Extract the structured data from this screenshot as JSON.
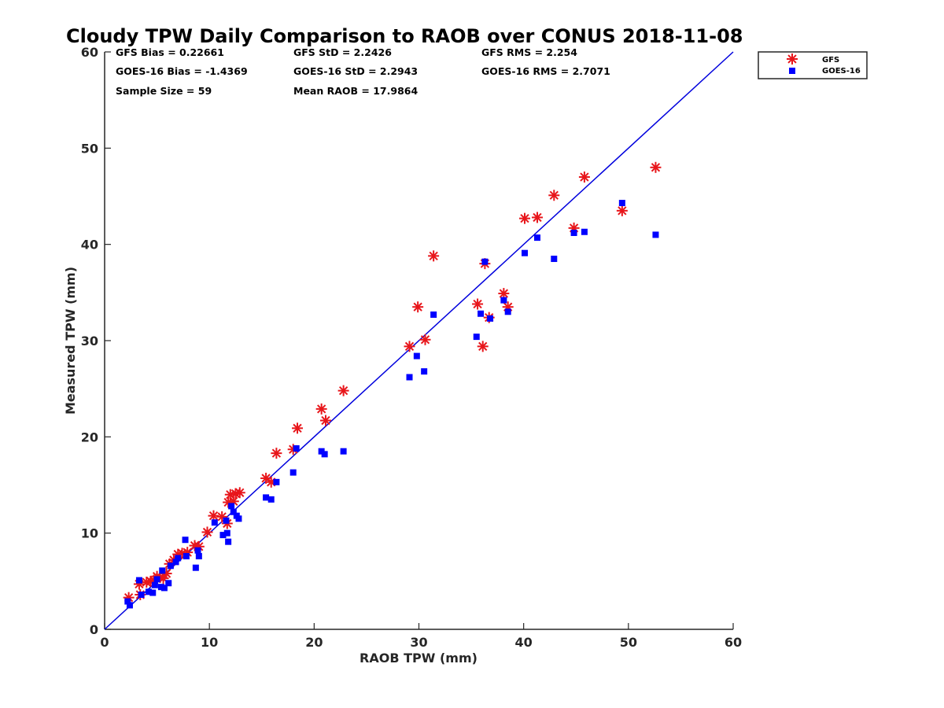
{
  "chart_data": {
    "type": "scatter",
    "title": "Cloudy TPW Daily Comparison to RAOB over CONUS 2018-11-08",
    "xlabel": "RAOB TPW (mm)",
    "ylabel": "Measured TPW (mm)",
    "xlim": [
      0,
      60
    ],
    "ylim": [
      0,
      60
    ],
    "xticks": [
      "0",
      "10",
      "20",
      "30",
      "40",
      "50",
      "60"
    ],
    "yticks": [
      "0",
      "10",
      "20",
      "30",
      "40",
      "50",
      "60"
    ],
    "grid": false,
    "legend_placement": "outside-top-right",
    "reference_line": "y = x",
    "stats": {
      "gfs_bias": "GFS Bias = 0.22661",
      "goes_bias": "GOES-16 Bias = -1.4369",
      "sample_size": "Sample Size = 59",
      "gfs_std": "GFS StD = 2.2426",
      "goes_std": "GOES-16 StD = 2.2943",
      "mean_raob": "Mean RAOB = 17.9864",
      "gfs_rms": "GFS RMS = 2.254",
      "goes_rms": "GOES-16 RMS = 2.7071"
    },
    "series": [
      {
        "name": "GFS",
        "marker": "asterisk",
        "color": "#e8161b",
        "points": [
          [
            2.3,
            3.3
          ],
          [
            3.3,
            4.7
          ],
          [
            3.4,
            3.6
          ],
          [
            4.0,
            4.9
          ],
          [
            4.4,
            5.0
          ],
          [
            4.7,
            5.1
          ],
          [
            5.0,
            5.5
          ],
          [
            5.3,
            5.4
          ],
          [
            5.6,
            5.3
          ],
          [
            5.9,
            5.8
          ],
          [
            6.2,
            6.8
          ],
          [
            6.6,
            7.2
          ],
          [
            7.0,
            7.8
          ],
          [
            7.4,
            7.9
          ],
          [
            7.9,
            8.0
          ],
          [
            8.6,
            8.7
          ],
          [
            9.0,
            8.6
          ],
          [
            9.8,
            10.1
          ],
          [
            10.4,
            11.8
          ],
          [
            11.2,
            11.7
          ],
          [
            11.7,
            11.0
          ],
          [
            11.8,
            13.2
          ],
          [
            12.0,
            14.0
          ],
          [
            12.3,
            13.3
          ],
          [
            12.5,
            14.1
          ],
          [
            12.9,
            14.2
          ],
          [
            15.4,
            15.7
          ],
          [
            15.9,
            15.3
          ],
          [
            16.4,
            18.3
          ],
          [
            18.0,
            18.7
          ],
          [
            18.4,
            20.9
          ],
          [
            20.7,
            22.9
          ],
          [
            21.1,
            21.7
          ],
          [
            22.8,
            24.8
          ],
          [
            29.1,
            29.4
          ],
          [
            29.9,
            33.5
          ],
          [
            30.6,
            30.1
          ],
          [
            31.4,
            38.8
          ],
          [
            35.6,
            33.8
          ],
          [
            36.1,
            29.4
          ],
          [
            36.3,
            38.0
          ],
          [
            36.7,
            32.4
          ],
          [
            38.1,
            34.9
          ],
          [
            38.5,
            33.5
          ],
          [
            40.1,
            42.7
          ],
          [
            41.3,
            42.8
          ],
          [
            42.9,
            45.1
          ],
          [
            44.8,
            41.7
          ],
          [
            45.8,
            47.0
          ],
          [
            49.4,
            43.5
          ],
          [
            52.6,
            48.0
          ]
        ]
      },
      {
        "name": "GOES-16",
        "marker": "square",
        "color": "#0000ff",
        "points": [
          [
            2.2,
            2.9
          ],
          [
            2.4,
            2.5
          ],
          [
            3.3,
            5.1
          ],
          [
            3.5,
            3.6
          ],
          [
            4.2,
            3.9
          ],
          [
            4.6,
            3.8
          ],
          [
            4.8,
            4.6
          ],
          [
            5.0,
            5.2
          ],
          [
            5.4,
            4.4
          ],
          [
            5.5,
            6.1
          ],
          [
            5.7,
            4.3
          ],
          [
            6.1,
            4.8
          ],
          [
            6.3,
            6.6
          ],
          [
            6.8,
            7.0
          ],
          [
            7.0,
            7.4
          ],
          [
            7.7,
            9.3
          ],
          [
            7.8,
            7.6
          ],
          [
            8.7,
            6.4
          ],
          [
            8.9,
            8.2
          ],
          [
            9.0,
            7.6
          ],
          [
            10.5,
            11.1
          ],
          [
            11.3,
            9.8
          ],
          [
            11.6,
            11.3
          ],
          [
            11.7,
            10.0
          ],
          [
            11.8,
            9.1
          ],
          [
            12.1,
            12.8
          ],
          [
            12.3,
            12.2
          ],
          [
            12.6,
            11.8
          ],
          [
            12.8,
            11.5
          ],
          [
            15.4,
            13.7
          ],
          [
            15.9,
            13.5
          ],
          [
            16.4,
            15.3
          ],
          [
            18.0,
            16.3
          ],
          [
            18.3,
            18.8
          ],
          [
            20.7,
            18.5
          ],
          [
            21.0,
            18.2
          ],
          [
            22.8,
            18.5
          ],
          [
            29.1,
            26.2
          ],
          [
            29.8,
            28.4
          ],
          [
            30.5,
            26.8
          ],
          [
            31.4,
            32.7
          ],
          [
            35.5,
            30.4
          ],
          [
            35.9,
            32.8
          ],
          [
            36.3,
            38.2
          ],
          [
            36.8,
            32.3
          ],
          [
            38.1,
            34.2
          ],
          [
            38.5,
            33.0
          ],
          [
            40.1,
            39.1
          ],
          [
            41.3,
            40.7
          ],
          [
            42.9,
            38.5
          ],
          [
            44.8,
            41.2
          ],
          [
            45.8,
            41.3
          ],
          [
            49.4,
            44.3
          ],
          [
            52.6,
            41.0
          ]
        ]
      }
    ]
  }
}
